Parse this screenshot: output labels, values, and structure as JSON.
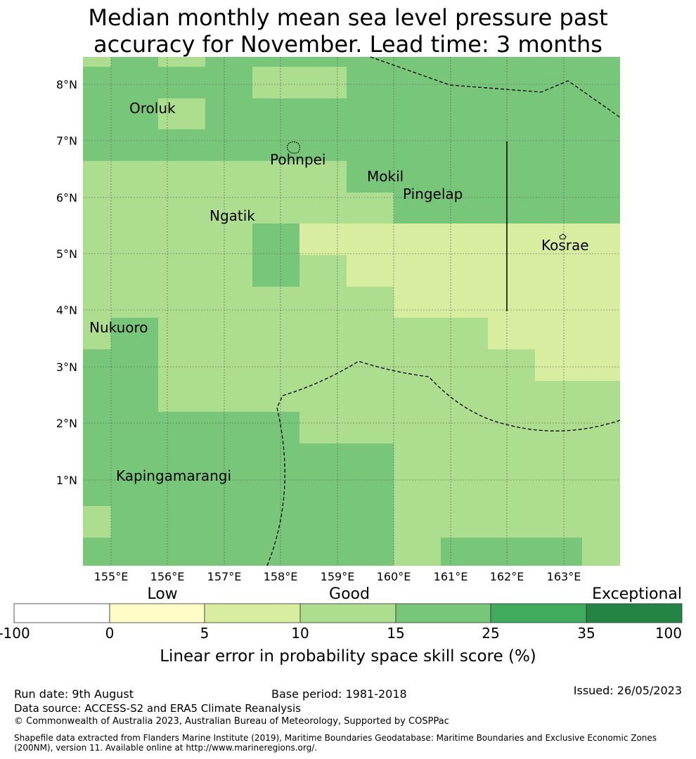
{
  "title": {
    "line1": "Median monthly mean sea level pressure past",
    "line2": "accuracy for November. Lead time: 3 months"
  },
  "map": {
    "lat_labels": [
      "8°N",
      "7°N",
      "6°N",
      "5°N",
      "4°N",
      "3°N",
      "2°N",
      "1°N"
    ],
    "lon_labels": [
      "155°E",
      "156°E",
      "157°E",
      "158°E",
      "159°E",
      "160°E",
      "161°E",
      "162°E",
      "163°E"
    ],
    "places": [
      "Oroluk",
      "Pohnpei",
      "Mokil",
      "Pingelap",
      "Ngatik",
      "Kosrae",
      "Nukuoro",
      "Kapingamarangi"
    ]
  },
  "legend": {
    "categories": [
      "Low",
      "Good",
      "Exceptional"
    ],
    "ticks": [
      "-100",
      "0",
      "5",
      "10",
      "15",
      "25",
      "35",
      "100"
    ],
    "colors": [
      "#ffffff",
      "#fffcc8",
      "#d9eda0",
      "#addd8e",
      "#78c679",
      "#41ab5d",
      "#238443"
    ],
    "title": "Linear error in probability space skill score (%)"
  },
  "footer": {
    "run_date": "Run date: 9th August",
    "base_period": "Base period: 1981-2018",
    "issued": "Issued: 26/05/2023",
    "data_source": "Data source: ACCESS-S2 and ERA5 Climate Reanalysis",
    "copyright": "© Commonwealth of Australia 2023, Australian Bureau of Meteorology, Supported by COSPPac",
    "shapefile_line1": "Shapefile data extracted from Flanders Marine Institute (2019), Maritime Boundaries Geodatabase: Maritime Boundaries and Exclusive Economic Zones",
    "shapefile_line2": "(200NM), version 11. Available online at http://www.marineregions.org/."
  }
}
